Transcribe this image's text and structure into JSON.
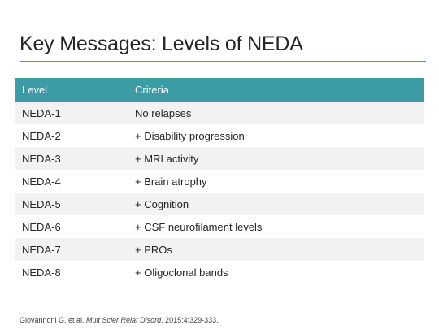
{
  "slide": {
    "title": "Key Messages: Levels of NEDA"
  },
  "table": {
    "headers": [
      "Level",
      "Criteria"
    ],
    "rows": [
      {
        "level": "NEDA-1",
        "criteria": "No relapses"
      },
      {
        "level": "NEDA-2",
        "criteria": "+ Disability progression"
      },
      {
        "level": "NEDA-3",
        "criteria": "+ MRI activity"
      },
      {
        "level": "NEDA-4",
        "criteria": "+ Brain atrophy"
      },
      {
        "level": "NEDA-5",
        "criteria": "+ Cognition"
      },
      {
        "level": "NEDA-6",
        "criteria": "+ CSF neurofilament levels"
      },
      {
        "level": "NEDA-7",
        "criteria": "+ PROs"
      },
      {
        "level": "NEDA-8",
        "criteria": "+ Oligoclonal bands"
      }
    ]
  },
  "citation": {
    "authors": "Giovannoni G, et al. ",
    "journal": "Mult Scler Relat Disord",
    "details": ". 2015;4:329-333."
  },
  "colors": {
    "header_fill": "#3b9ca6",
    "rule": "#4a9aa3",
    "row_shade": "#f2f2f2"
  }
}
